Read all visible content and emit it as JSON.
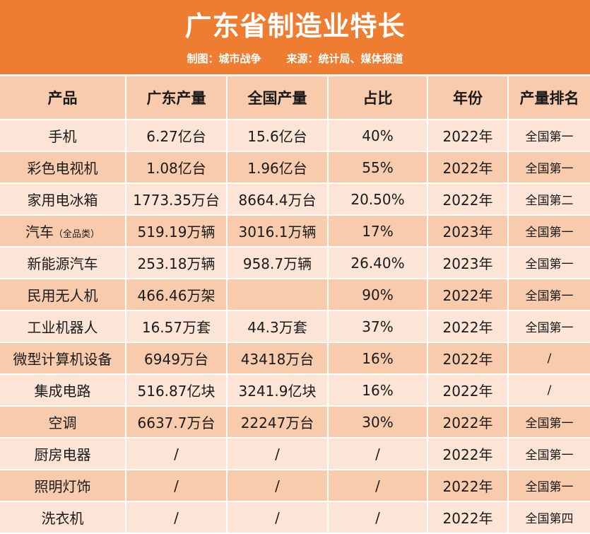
{
  "header": {
    "title": "广东省制造业特长",
    "credit": "制图：城市战争",
    "source": "来源：统计局、媒体报道"
  },
  "table": {
    "columns": [
      "产品",
      "广东产量",
      "全国产量",
      "占比",
      "年份",
      "产量排名"
    ],
    "rows": [
      {
        "product": "手机",
        "product_note": "",
        "guangdong": "6.27亿台",
        "national": "15.6亿台",
        "share": "40%",
        "year": "2022年",
        "rank": "全国第一"
      },
      {
        "product": "彩色电视机",
        "product_note": "",
        "guangdong": "1.08亿台",
        "national": "1.96亿台",
        "share": "55%",
        "year": "2022年",
        "rank": "全国第一"
      },
      {
        "product": "家用电冰箱",
        "product_note": "",
        "guangdong": "1773.35万台",
        "national": "8664.4万台",
        "share": "20.50%",
        "year": "2022年",
        "rank": "全国第二"
      },
      {
        "product": "汽车",
        "product_note": "（全品类）",
        "guangdong": "519.19万辆",
        "national": "3016.1万辆",
        "share": "17%",
        "year": "2023年",
        "rank": "全国第一"
      },
      {
        "product": "新能源汽车",
        "product_note": "",
        "guangdong": "253.18万辆",
        "national": "958.7万辆",
        "share": "26.40%",
        "year": "2023年",
        "rank": "全国第一"
      },
      {
        "product": "民用无人机",
        "product_note": "",
        "guangdong": "466.46万架",
        "national": "",
        "share": "90%",
        "year": "2022年",
        "rank": "全国第一"
      },
      {
        "product": "工业机器人",
        "product_note": "",
        "guangdong": "16.57万套",
        "national": "44.3万套",
        "share": "37%",
        "year": "2022年",
        "rank": "全国第一"
      },
      {
        "product": "微型计算机设备",
        "product_note": "",
        "guangdong": "6949万台",
        "national": "43418万台",
        "share": "16%",
        "year": "2022年",
        "rank": "/"
      },
      {
        "product": "集成电路",
        "product_note": "",
        "guangdong": "516.87亿块",
        "national": "3241.9亿块",
        "share": "16%",
        "year": "2022年",
        "rank": "/"
      },
      {
        "product": "空调",
        "product_note": "",
        "guangdong": "6637.7万台",
        "national": "22247万台",
        "share": "30%",
        "year": "2022年",
        "rank": "全国第一"
      },
      {
        "product": "厨房电器",
        "product_note": "",
        "guangdong": "/",
        "national": "/",
        "share": "/",
        "year": "2022年",
        "rank": "全国第一"
      },
      {
        "product": "照明灯饰",
        "product_note": "",
        "guangdong": "/",
        "national": "/",
        "share": "/",
        "year": "2022年",
        "rank": "全国第一"
      },
      {
        "product": "洗衣机",
        "product_note": "",
        "guangdong": "/",
        "national": "/",
        "share": "/",
        "year": "2022年",
        "rank": "全国第四"
      }
    ]
  },
  "colors": {
    "header_bg": "#ee7d31",
    "header_text": "#ffffff",
    "row_light": "#fce4d6",
    "row_dark": "#f8cbad"
  }
}
